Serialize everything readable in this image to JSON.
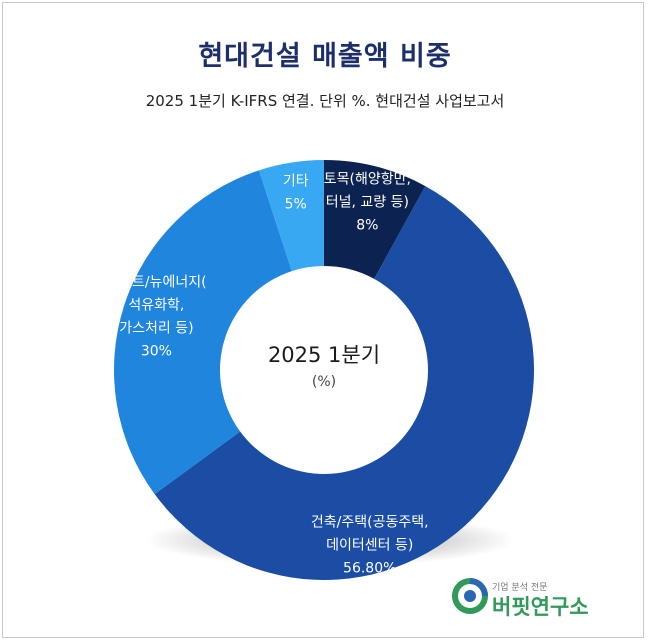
{
  "chart_data": {
    "type": "pie",
    "title": "현대건설 매출액 비중",
    "subtitle": "2025 1분기 K-IFRS 연결. 단위 %. 현대건설 사업보고서",
    "center_label": "2025 1분기",
    "center_unit": "(%)",
    "series": [
      {
        "name": "토목(해양항만, 터널, 교량 등)",
        "label_lines": [
          "토목(해양항만,",
          "터널, 교량 등)"
        ],
        "value_label": "8%",
        "value": 8,
        "color": "#0c2351"
      },
      {
        "name": "건축/주택(공동주택, 데이터센터 등)",
        "label_lines": [
          "건축/주택(공동주택,",
          "데이터센터 등)"
        ],
        "value_label": "56.80%",
        "value": 56.8,
        "color": "#1a4da3"
      },
      {
        "name": "플랜트/뉴에너지(석유화학, 가스처리 등)",
        "label_lines": [
          "플랜트/뉴에너지(",
          "석유화학,",
          "가스처리 등)"
        ],
        "value_label": "30%",
        "value": 30,
        "color": "#1f85dd"
      },
      {
        "name": "기타",
        "label_lines": [
          "기타"
        ],
        "value_label": "5%",
        "value": 5,
        "color": "#38a8f2"
      }
    ]
  },
  "logo": {
    "tagline": "기업 분석 전문",
    "name": "버핏연구소"
  }
}
